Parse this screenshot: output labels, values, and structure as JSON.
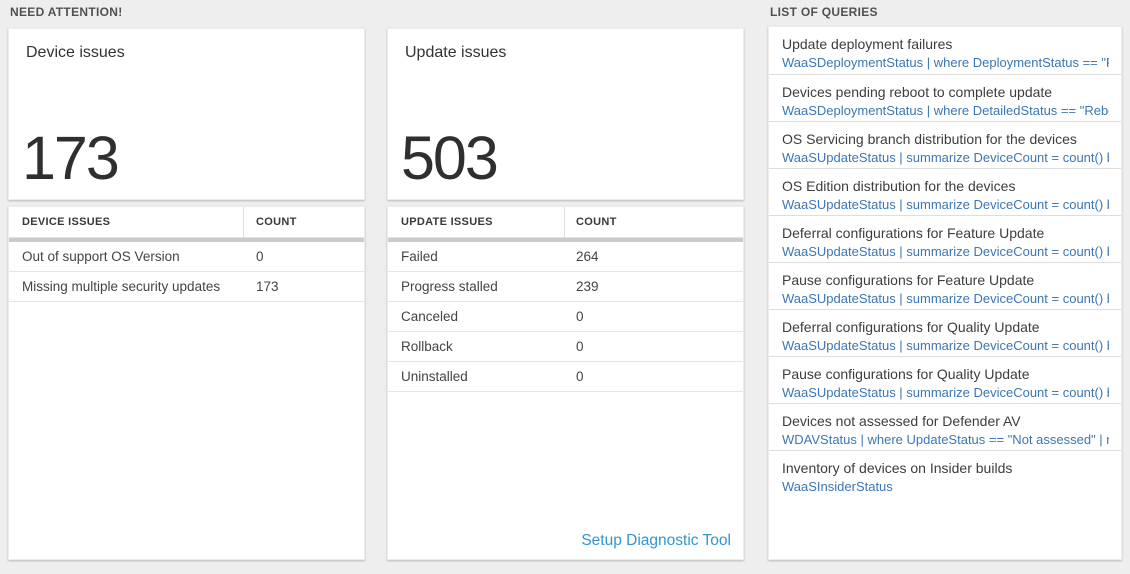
{
  "colors": {
    "page_background": "#eeeeee",
    "panel_background": "#ffffff",
    "header_band": "#c8cacc",
    "query_code_blue": "#3c76b4",
    "setup_link_blue": "#3295d2",
    "big_number": "#2d2f31"
  },
  "need_attention": {
    "label": "NEED ATTENTION!",
    "cards": [
      {
        "title": "Device issues",
        "count": "173",
        "table": {
          "headers": [
            "DEVICE ISSUES",
            "COUNT"
          ],
          "rows": [
            {
              "label": "Out of support OS Version",
              "value": "0"
            },
            {
              "label": "Missing multiple security updates",
              "value": "173"
            }
          ]
        }
      },
      {
        "title": "Update issues",
        "count": "503",
        "table": {
          "headers": [
            "UPDATE ISSUES",
            "COUNT"
          ],
          "rows": [
            {
              "label": "Failed",
              "value": "264"
            },
            {
              "label": "Progress stalled",
              "value": "239"
            },
            {
              "label": "Canceled",
              "value": "0"
            },
            {
              "label": "Rollback",
              "value": "0"
            },
            {
              "label": "Uninstalled",
              "value": "0"
            }
          ]
        },
        "footer_link": "Setup Diagnostic Tool"
      }
    ]
  },
  "queries": {
    "label": "LIST OF QUERIES",
    "items": [
      {
        "title": "Update deployment failures",
        "query": "WaaSDeploymentStatus | where DeploymentStatus == \"Failed\" |..."
      },
      {
        "title": "Devices pending reboot to complete update",
        "query": "WaaSDeploymentStatus | where DetailedStatus == \"Reboot pend..."
      },
      {
        "title": "OS Servicing branch distribution for the devices",
        "query": "WaaSUpdateStatus | summarize DeviceCount = count() by OSSer..."
      },
      {
        "title": "OS Edition distribution for the devices",
        "query": "WaaSUpdateStatus | summarize DeviceCount = count() by OSEdit..."
      },
      {
        "title": "Deferral configurations for Feature Update",
        "query": "WaaSUpdateStatus | summarize DeviceCount = count() by Featur..."
      },
      {
        "title": "Pause configurations for Feature Update",
        "query": "WaaSUpdateStatus | summarize DeviceCount = count() by Featur..."
      },
      {
        "title": "Deferral configurations for Quality Update",
        "query": "WaaSUpdateStatus | summarize DeviceCount = count() by Qualit..."
      },
      {
        "title": "Pause configurations for Quality Update",
        "query": "WaaSUpdateStatus | summarize DeviceCount = count() by Qualit..."
      },
      {
        "title": "Devices not assessed for Defender AV",
        "query": "WDAVStatus | where UpdateStatus == \"Not assessed\" | render ta..."
      },
      {
        "title": "Inventory of devices on Insider builds",
        "query": "WaaSInsiderStatus"
      }
    ]
  }
}
